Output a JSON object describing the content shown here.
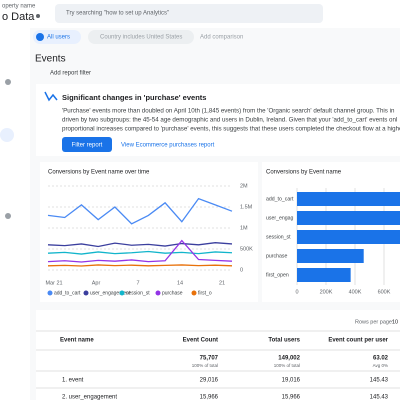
{
  "header": {
    "property_label": "operty name",
    "property_name": "o Data",
    "search_placeholder": "Try searching \"how to set up Analytics\""
  },
  "comparisons": [
    "All users",
    "Country includes United States",
    "Add comparison"
  ],
  "page_title": "Events",
  "add_filter": "Add report filter",
  "insight": {
    "title": "Significant changes in 'purchase' events",
    "body": [
      "'Purchase' events more than doubled on April 10th (1,845 events) from the 'Organic search' default channel group. This in",
      "driven by two subgroups: the 45-54 age demographic and users in Dublin, Ireland. Given that your 'add_to_cart' events onl",
      "proportional increases compared to 'purchase' events, this suggests that these users completed the checkout flow at a highe"
    ],
    "primary_button": "Filter report",
    "secondary_button": "View Ecommerce purchases report"
  },
  "line_chart": {
    "title": "Conversions by Event name over time",
    "x_labels": [
      "Mar 21",
      "Apr",
      "7",
      "14",
      "21"
    ],
    "ylim": [
      0,
      2000000
    ],
    "yticks": [
      {
        "value": 0,
        "label": "0"
      },
      {
        "value": 500000,
        "label": "500K"
      },
      {
        "value": 1000000,
        "label": "1M"
      },
      {
        "value": 1500000,
        "label": "1.5M"
      },
      {
        "value": 2000000,
        "label": "2M"
      }
    ],
    "series": [
      {
        "name": "add_to_cart",
        "color": "#4a8af4",
        "values": [
          1300000,
          1250000,
          1550000,
          1200000,
          1500000,
          1100000,
          1300000,
          1600000,
          1150000,
          1700000,
          1550000,
          1400000
        ]
      },
      {
        "name": "user_engagement",
        "color": "#3b3f9e",
        "values": [
          600000,
          580000,
          620000,
          560000,
          640000,
          590000,
          610000,
          570000,
          630000,
          600000,
          650000,
          620000
        ]
      },
      {
        "name": "session_st",
        "color": "#12b5cb",
        "values": [
          400000,
          420000,
          380000,
          430000,
          390000,
          410000,
          440000,
          400000,
          420000,
          390000,
          430000,
          410000
        ]
      },
      {
        "name": "purchase",
        "color": "#9334e6",
        "values": [
          200000,
          220000,
          190000,
          230000,
          210000,
          240000,
          200000,
          220000,
          700000,
          250000,
          230000,
          210000
        ]
      },
      {
        "name": "first_o",
        "color": "#e8710a",
        "values": [
          100000,
          110000,
          95000,
          120000,
          105000,
          115000,
          100000,
          110000,
          120000,
          105000,
          115000,
          100000
        ]
      }
    ]
  },
  "bar_chart": {
    "title": "Conversions by Event name",
    "categories": [
      "add_to_cart",
      "user_engag",
      "session_st",
      "purchase",
      "first_open"
    ],
    "values": [
      790000,
      760000,
      720000,
      460000,
      370000
    ],
    "color": "#1a73e8",
    "xlim": [
      0,
      600000
    ],
    "xticks": [
      {
        "value": 0,
        "label": "0"
      },
      {
        "value": 200000,
        "label": "200K"
      },
      {
        "value": 400000,
        "label": "400K"
      },
      {
        "value": 600000,
        "label": "600K"
      }
    ]
  },
  "table": {
    "rows_per_page_label": "Rows per page:",
    "rows_per_page": "10",
    "columns": [
      "Event name",
      "Event Count",
      "Total users",
      "Event count per user"
    ],
    "totals": [
      [
        "75,707",
        "100% of total"
      ],
      [
        "149,002",
        "100% of total"
      ],
      [
        "63.02",
        "Avg 0%"
      ]
    ],
    "rows": [
      [
        "1. event",
        "29,016",
        "19,016",
        "145.43"
      ],
      [
        "2. user_engagement",
        "15,966",
        "15,966",
        "145.43"
      ]
    ]
  }
}
